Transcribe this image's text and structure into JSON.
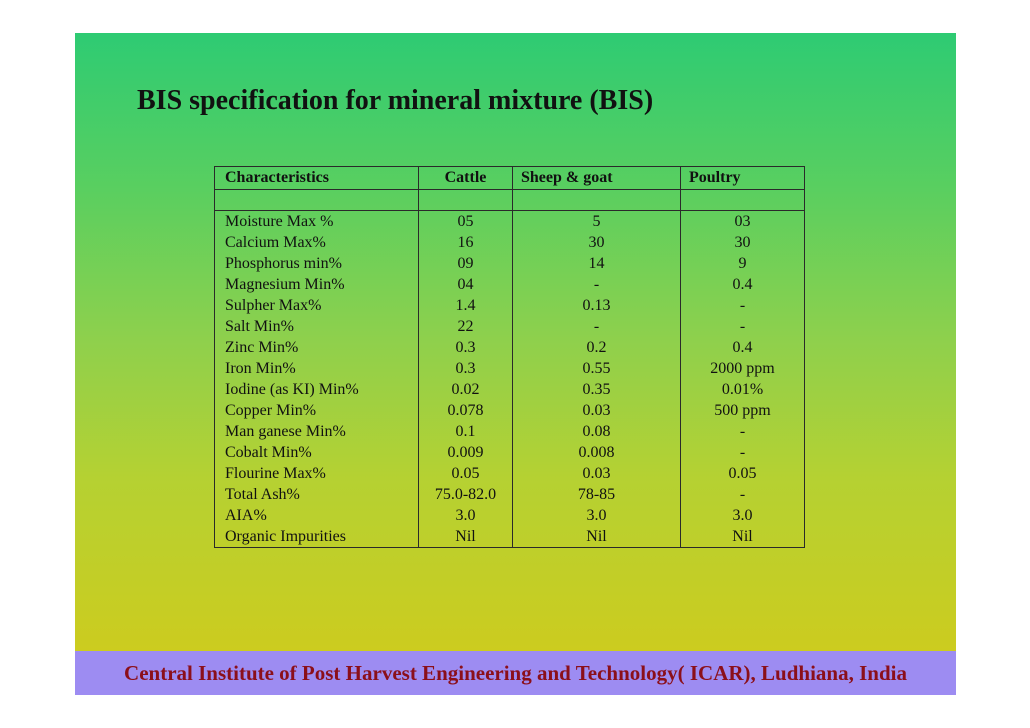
{
  "title": "BIS specification for mineral mixture (BIS)",
  "table": {
    "headers": [
      "Characteristics",
      "Cattle",
      "Sheep & goat",
      "Poultry"
    ],
    "rows": [
      [
        "Moisture Max %",
        "05",
        "5",
        "03"
      ],
      [
        "Calcium Max%",
        "16",
        "30",
        "30"
      ],
      [
        "Phosphorus min%",
        "09",
        "14",
        "9"
      ],
      [
        "Magnesium Min%",
        "04",
        "-",
        "0.4"
      ],
      [
        "Sulpher Max%",
        "1.4",
        "0.13",
        "-"
      ],
      [
        "Salt Min%",
        "22",
        "-",
        "-"
      ],
      [
        "Zinc Min%",
        "0.3",
        "0.2",
        "0.4"
      ],
      [
        "Iron Min%",
        "0.3",
        "0.55",
        "2000 ppm"
      ],
      [
        "Iodine (as KI) Min%",
        "0.02",
        "0.35",
        "0.01%"
      ],
      [
        "Copper Min%",
        "0.078",
        "0.03",
        "500 ppm"
      ],
      [
        "Man ganese Min%",
        "0.1",
        "0.08",
        "-"
      ],
      [
        "Cobalt Min%",
        "0.009",
        "0.008",
        "-"
      ],
      [
        "Flourine Max%",
        "0.05",
        "0.03",
        "0.05"
      ],
      [
        "Total Ash%",
        "75.0-82.0",
        "78-85",
        "-"
      ],
      [
        "AIA%",
        "3.0",
        "3.0",
        "3.0"
      ],
      [
        "Organic Impurities",
        "Nil",
        "Nil",
        "Nil"
      ]
    ]
  },
  "footer": "Central Institute of Post Harvest Engineering and Technology( ICAR), Ludhiana, India",
  "colors": {
    "footer_bg": "#9d8cf2",
    "footer_text": "#8b0f1a",
    "gradient_top": "#2ecb73",
    "gradient_bottom": "#cccc1f"
  }
}
